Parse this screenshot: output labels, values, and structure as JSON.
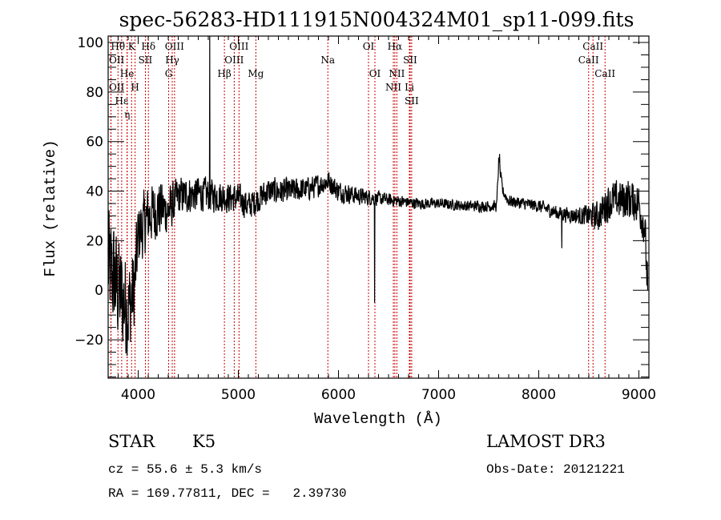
{
  "chart_data": {
    "type": "line",
    "title": "spec-56283-HD111915N004324M01_sp11-099.fits",
    "xlabel": "Wavelength (Å)",
    "ylabel": "Flux (relative)",
    "xlim": [
      3700,
      9100
    ],
    "ylim": [
      -35.5,
      102.6
    ],
    "xticks": [
      4000,
      5000,
      6000,
      7000,
      8000,
      9000
    ],
    "xtick_labels": [
      "4000",
      "5000",
      "6000",
      "7000",
      "8000",
      "9000"
    ],
    "yticks": [
      -20,
      0,
      20,
      40,
      60,
      80,
      100
    ],
    "ytick_labels": [
      "−20",
      "0",
      "20",
      "40",
      "60",
      "80",
      "100"
    ],
    "grid": false,
    "series": [
      {
        "name": "flux",
        "continuum_anchors": [
          [
            3700,
            10
          ],
          [
            3760,
            5
          ],
          [
            3820,
            -2
          ],
          [
            3900,
            -8
          ],
          [
            3960,
            0
          ],
          [
            4000,
            22
          ],
          [
            4100,
            30
          ],
          [
            4200,
            33
          ],
          [
            4300,
            32
          ],
          [
            4400,
            38
          ],
          [
            4600,
            39
          ],
          [
            4800,
            38
          ],
          [
            5000,
            37
          ],
          [
            5100,
            34
          ],
          [
            5300,
            40
          ],
          [
            5500,
            40
          ],
          [
            5700,
            41
          ],
          [
            5900,
            44
          ],
          [
            6000,
            40
          ],
          [
            6200,
            38
          ],
          [
            6400,
            37
          ],
          [
            6600,
            36
          ],
          [
            6800,
            35
          ],
          [
            7000,
            35
          ],
          [
            7300,
            34
          ],
          [
            7580,
            34
          ],
          [
            7600,
            52
          ],
          [
            7640,
            40
          ],
          [
            7700,
            36
          ],
          [
            8000,
            34
          ],
          [
            8200,
            31
          ],
          [
            8400,
            30
          ],
          [
            8600,
            30
          ],
          [
            8700,
            36
          ],
          [
            8900,
            37
          ],
          [
            9000,
            35
          ],
          [
            9060,
            25
          ],
          [
            9080,
            5
          ]
        ],
        "noise_amplitude": [
          [
            3700,
            28
          ],
          [
            3900,
            25
          ],
          [
            4000,
            16
          ],
          [
            4200,
            14
          ],
          [
            4400,
            9
          ],
          [
            5000,
            7
          ],
          [
            5500,
            6
          ],
          [
            6000,
            5
          ],
          [
            6500,
            3
          ],
          [
            7000,
            2.5
          ],
          [
            8000,
            3
          ],
          [
            8400,
            4
          ],
          [
            8700,
            9
          ],
          [
            9050,
            10
          ]
        ],
        "features": [
          {
            "wavelength": 4715,
            "flux": 110
          },
          {
            "wavelength": 6360,
            "flux": -5
          },
          {
            "wavelength": 8230,
            "flux": 17
          },
          {
            "wavelength": 7610,
            "flux": 55
          }
        ]
      }
    ],
    "lines": [
      {
        "label": "Hθ",
        "wavelength": 3798,
        "row": 1
      },
      {
        "label": "K",
        "wavelength": 3934,
        "row": 1
      },
      {
        "label": "Hδ",
        "wavelength": 4102,
        "row": 1
      },
      {
        "label": "OIII",
        "wavelength": 4363,
        "row": 1
      },
      {
        "label": "OIII",
        "wavelength": 5007,
        "row": 1
      },
      {
        "label": "OI",
        "wavelength": 6300,
        "row": 1
      },
      {
        "label": "Hα",
        "wavelength": 6563,
        "row": 1
      },
      {
        "label": "SII",
        "wavelength": 6716,
        "row": 1
      },
      {
        "label": "CaII",
        "wavelength": 8542,
        "row": 1
      },
      {
        "label": "OII",
        "wavelength": 3727,
        "row": 2
      },
      {
        "label": "He",
        "wavelength": 3889,
        "row": 2
      },
      {
        "label": "SII",
        "wavelength": 4072,
        "row": 2
      },
      {
        "label": "Hγ",
        "wavelength": 4340,
        "row": 2
      },
      {
        "label": "OIII",
        "wavelength": 4959,
        "row": 2
      },
      {
        "label": "Na",
        "wavelength": 5894,
        "row": 2
      },
      {
        "label": "NII",
        "wavelength": 6583,
        "row": 2
      },
      {
        "label": "Li",
        "wavelength": 6708,
        "row": 2
      },
      {
        "label": "CaII",
        "wavelength": 8498,
        "row": 2
      },
      {
        "label": "OII",
        "wavelength": 3729,
        "row": 3
      },
      {
        "label": "Hε",
        "wavelength": 3835,
        "row": 3
      },
      {
        "label": "η",
        "wavelength": 3890,
        "row": 3
      },
      {
        "label": "H",
        "wavelength": 3969,
        "row": 3
      },
      {
        "label": "G",
        "wavelength": 4304,
        "row": 3
      },
      {
        "label": "Hβ",
        "wavelength": 4861,
        "row": 3
      },
      {
        "label": "Mg",
        "wavelength": 5175,
        "row": 3
      },
      {
        "label": "OI",
        "wavelength": 6364,
        "row": 3
      },
      {
        "label": "NII",
        "wavelength": 6548,
        "row": 3
      },
      {
        "label": "SII",
        "wavelength": 6731,
        "row": 3
      },
      {
        "label": "CaII",
        "wavelength": 8662,
        "row": 3
      }
    ]
  },
  "info": {
    "class": "STAR",
    "subclass": "K5",
    "survey": "LAMOST DR3",
    "cz": "cz = 55.6 ± 5.3 km/s",
    "obs_date": "Obs-Date: 20121221",
    "coords": "RA = 169.77811, DEC =   2.39730"
  },
  "colors": {
    "spectrum": "#000000",
    "line_marker": "#cc0000"
  }
}
